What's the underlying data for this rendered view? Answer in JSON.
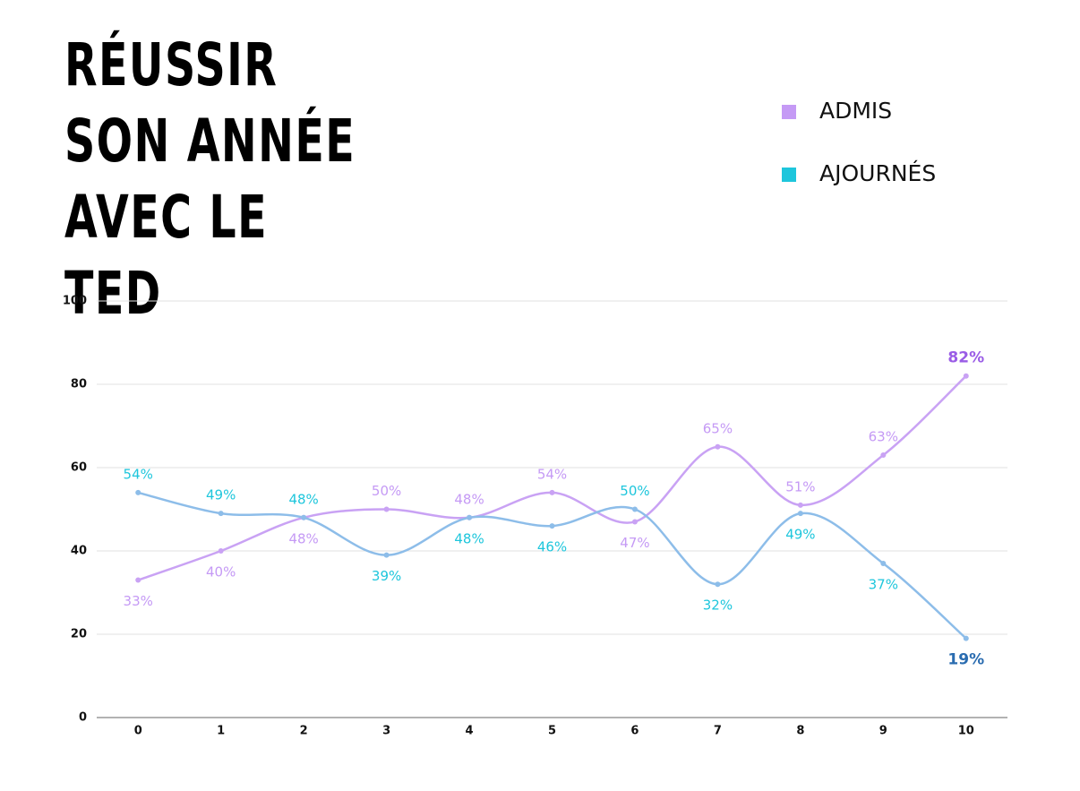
{
  "chart_data": {
    "type": "line",
    "title": "RÉUSSIR SON ANNÉE AVEC LE TED",
    "x": [
      0,
      1,
      2,
      3,
      4,
      5,
      6,
      7,
      8,
      9,
      10
    ],
    "xlim": [
      -0.5,
      10.5
    ],
    "xticks": [
      0,
      1,
      2,
      3,
      4,
      5,
      6,
      7,
      8,
      9,
      10
    ],
    "ylim": [
      0,
      100
    ],
    "yticks": [
      0,
      20,
      40,
      60,
      80,
      100
    ],
    "grid": true,
    "legend": "top-right",
    "series": [
      {
        "name": "ADMIS",
        "color": "#c59af5",
        "line_color": "#c9a2f4",
        "highlight_color": "#9a5ce6",
        "values": [
          33,
          40,
          48,
          50,
          48,
          54,
          47,
          65,
          51,
          63,
          82
        ],
        "value_labels": [
          "33%",
          "40%",
          "48%",
          "50%",
          "48%",
          "54%",
          "47%",
          "65%",
          "51%",
          "63%",
          "82%"
        ]
      },
      {
        "name": "AJOURNÉS",
        "color": "#1ec6dc",
        "line_color": "#8dbde9",
        "highlight_color": "#2a6cb0",
        "values": [
          54,
          49,
          48,
          39,
          48,
          46,
          50,
          32,
          49,
          37,
          19
        ],
        "value_labels": [
          "54%",
          "49%",
          "48%",
          "39%",
          "48%",
          "46%",
          "50%",
          "32%",
          "49%",
          "37%",
          "19%"
        ]
      }
    ]
  }
}
